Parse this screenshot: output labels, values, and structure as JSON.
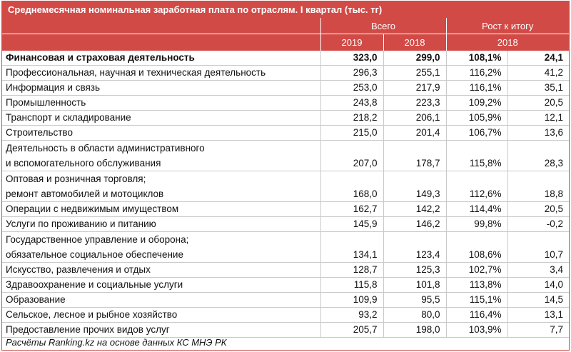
{
  "title": "Среднемесячная номинальная заработная плата по отраслям. I квартал (тыс. тг)",
  "header": {
    "group_total": "Всего",
    "group_growth": "Рост к итогу",
    "year_2019": "2019",
    "year_2018": "2018",
    "growth_year": "2018"
  },
  "rows": [
    {
      "name": "Финансовая и страховая деятельность",
      "v2019": "323,0",
      "v2018": "299,0",
      "pct": "108,1%",
      "delta": "24,1"
    },
    {
      "name": "Профессиональная, научная и техническая деятельность",
      "v2019": "296,3",
      "v2018": "255,1",
      "pct": "116,2%",
      "delta": "41,2"
    },
    {
      "name": "Информация и связь",
      "v2019": "253,0",
      "v2018": "217,9",
      "pct": "116,1%",
      "delta": "35,1"
    },
    {
      "name": "Промышленность",
      "v2019": "243,8",
      "v2018": "223,3",
      "pct": "109,2%",
      "delta": "20,5"
    },
    {
      "name": "Транспорт и складирование",
      "v2019": "218,2",
      "v2018": "206,1",
      "pct": "105,9%",
      "delta": "12,1"
    },
    {
      "name": "Строительство",
      "v2019": "215,0",
      "v2018": "201,4",
      "pct": "106,7%",
      "delta": "13,6"
    },
    {
      "name_line1": "Деятельность в области административного",
      "name_line2": "и вспомогательного обслуживания",
      "v2019": "207,0",
      "v2018": "178,7",
      "pct": "115,8%",
      "delta": "28,3"
    },
    {
      "name_line1": "Оптовая и розничная торговля;",
      "name_line2": "ремонт автомобилей и мотоциклов",
      "v2019": "168,0",
      "v2018": "149,3",
      "pct": "112,6%",
      "delta": "18,8"
    },
    {
      "name": "Операции с недвижимым имуществом",
      "v2019": "162,7",
      "v2018": "142,2",
      "pct": "114,4%",
      "delta": "20,5"
    },
    {
      "name": "Услуги по проживанию и питанию",
      "v2019": "145,9",
      "v2018": "146,2",
      "pct": "99,8%",
      "delta": "-0,2"
    },
    {
      "name_line1": "Государственное управление и оборона;",
      "name_line2": "обязательное социальное обеспечение",
      "v2019": "134,1",
      "v2018": "123,4",
      "pct": "108,6%",
      "delta": "10,7"
    },
    {
      "name": "Искусство, развлечения и отдых",
      "v2019": "128,7",
      "v2018": "125,3",
      "pct": "102,7%",
      "delta": "3,4"
    },
    {
      "name": "Здравоохранение и социальные услуги",
      "v2019": "115,8",
      "v2018": "101,8",
      "pct": "113,8%",
      "delta": "14,0"
    },
    {
      "name": "Образование",
      "v2019": "109,9",
      "v2018": "95,5",
      "pct": "115,1%",
      "delta": "14,5"
    },
    {
      "name": "Сельское, лесное и рыбное хозяйство",
      "v2019": "93,2",
      "v2018": "80,0",
      "pct": "116,4%",
      "delta": "13,1"
    },
    {
      "name": "Предоставление прочих видов услуг",
      "v2019": "205,7",
      "v2018": "198,0",
      "pct": "103,9%",
      "delta": "7,7"
    }
  ],
  "footnote": "Расчёты Ranking.kz на основе данных КС МНЭ РК",
  "colors": {
    "header": "#d24a46",
    "border": "#c9c9c9"
  }
}
